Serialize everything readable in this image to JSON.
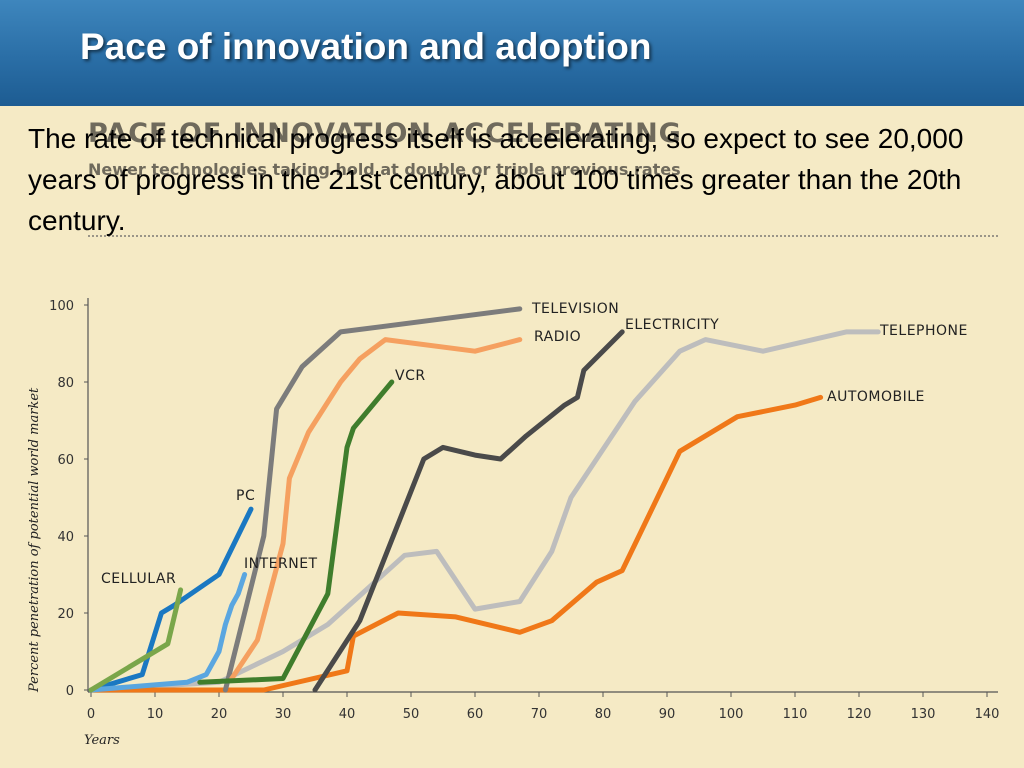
{
  "slide": {
    "title": "Pace of innovation and adoption",
    "body": "The rate of technical progress itself is accelerating, so expect to see 20,000 years of progress in the 21st century, about 100 times greater than the 20th century.",
    "underlay_heading": "PACE OF INNOVATION ACCELERATING",
    "underlay_subheading": "Newer technologies taking hold at double or triple previous rates"
  },
  "chart_data": {
    "type": "line",
    "title": "",
    "xlabel": "Years",
    "ylabel": "Percent penetration of potential world market",
    "xlim": [
      0,
      140
    ],
    "ylim": [
      0,
      100
    ],
    "xticks": [
      0,
      10,
      20,
      30,
      40,
      50,
      60,
      70,
      80,
      90,
      100,
      110,
      120,
      130,
      140
    ],
    "yticks": [
      0,
      20,
      40,
      60,
      80,
      100
    ],
    "grid": false,
    "legend": "inline labels at line ends",
    "series": [
      {
        "name": "TELEPHONE",
        "color": "#bdbdbd",
        "points": [
          [
            0,
            0
          ],
          [
            20,
            2
          ],
          [
            30,
            10
          ],
          [
            37,
            17
          ],
          [
            43,
            26
          ],
          [
            49,
            35
          ],
          [
            54,
            36
          ],
          [
            60,
            21
          ],
          [
            67,
            23
          ],
          [
            72,
            36
          ],
          [
            75,
            50
          ],
          [
            85,
            75
          ],
          [
            92,
            88
          ],
          [
            96,
            91
          ],
          [
            105,
            88
          ],
          [
            118,
            93
          ],
          [
            123,
            93
          ]
        ]
      },
      {
        "name": "AUTOMOBILE",
        "color": "#f07818",
        "points": [
          [
            0,
            0
          ],
          [
            27,
            0
          ],
          [
            40,
            5
          ],
          [
            41,
            14
          ],
          [
            48,
            20
          ],
          [
            57,
            19
          ],
          [
            67,
            15
          ],
          [
            72,
            18
          ],
          [
            79,
            28
          ],
          [
            83,
            31
          ],
          [
            92,
            62
          ],
          [
            101,
            71
          ],
          [
            110,
            74
          ],
          [
            114,
            76
          ]
        ]
      },
      {
        "name": "ELECTRICITY",
        "color": "#4a4a4a",
        "points": [
          [
            35,
            0
          ],
          [
            42,
            18
          ],
          [
            52,
            60
          ],
          [
            55,
            63
          ],
          [
            60,
            61
          ],
          [
            64,
            60
          ],
          [
            68,
            66
          ],
          [
            74,
            74
          ],
          [
            76,
            76
          ],
          [
            77,
            83
          ],
          [
            83,
            93
          ]
        ]
      },
      {
        "name": "TELEVISION",
        "color": "#7c7c7c",
        "points": [
          [
            21,
            0
          ],
          [
            27,
            40
          ],
          [
            29,
            73
          ],
          [
            33,
            84
          ],
          [
            39,
            93
          ],
          [
            67,
            99
          ]
        ]
      },
      {
        "name": "RADIO",
        "color": "#f5a060",
        "points": [
          [
            22,
            3
          ],
          [
            26,
            13
          ],
          [
            30,
            38
          ],
          [
            31,
            55
          ],
          [
            34,
            67
          ],
          [
            39,
            80
          ],
          [
            42,
            86
          ],
          [
            46,
            91
          ],
          [
            60,
            88
          ],
          [
            67,
            91
          ]
        ]
      },
      {
        "name": "VCR",
        "color": "#3f7d2c",
        "points": [
          [
            17,
            2
          ],
          [
            30,
            3
          ],
          [
            37,
            25
          ],
          [
            40,
            63
          ],
          [
            41,
            68
          ],
          [
            47,
            80
          ]
        ]
      },
      {
        "name": "PC",
        "color": "#1a78c2",
        "points": [
          [
            0,
            0
          ],
          [
            8,
            4
          ],
          [
            11,
            20
          ],
          [
            13,
            22
          ],
          [
            20,
            30
          ],
          [
            25,
            47
          ]
        ]
      },
      {
        "name": "INTERNET",
        "color": "#5aa6e0",
        "points": [
          [
            0,
            0
          ],
          [
            15,
            2
          ],
          [
            18,
            4
          ],
          [
            20,
            10
          ],
          [
            21,
            17
          ],
          [
            22,
            22
          ],
          [
            23,
            25
          ],
          [
            24,
            30
          ]
        ]
      },
      {
        "name": "CELLULAR",
        "color": "#7aa64a",
        "points": [
          [
            0,
            0
          ],
          [
            12,
            12
          ],
          [
            14,
            26
          ]
        ]
      }
    ]
  }
}
